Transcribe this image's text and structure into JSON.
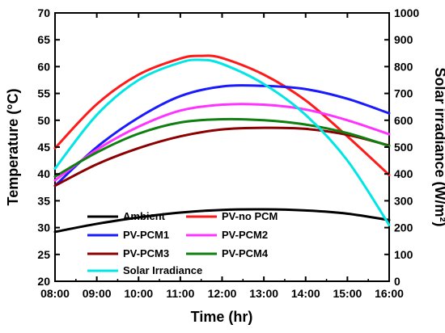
{
  "chart_data": {
    "type": "line",
    "xlabel": "Time (hr)",
    "ylabel": "Temperature (°C)",
    "y2label": "Solar irradiance (W/m²)",
    "x_ticks": [
      "08:00",
      "09:00",
      "10:00",
      "11:00",
      "12:00",
      "13:00",
      "14:00",
      "15:00",
      "16:00"
    ],
    "x_hours": [
      8,
      9,
      10,
      11,
      12,
      13,
      14,
      15,
      16
    ],
    "xlim": [
      8,
      16
    ],
    "ylim": [
      20,
      70
    ],
    "y_ticks": [
      20,
      25,
      30,
      35,
      40,
      45,
      50,
      55,
      60,
      65,
      70
    ],
    "y2lim": [
      0,
      1000
    ],
    "y2_ticks": [
      0,
      100,
      200,
      300,
      400,
      500,
      600,
      700,
      800,
      900,
      1000
    ],
    "grid": false,
    "legend_position": "lower-center",
    "series": [
      {
        "name": "Ambient",
        "axis": "left",
        "color": "#000000",
        "x": [
          8,
          9,
          10,
          11,
          12,
          13,
          14,
          15,
          16
        ],
        "y": [
          29.2,
          30.7,
          31.9,
          32.8,
          33.3,
          33.4,
          33.2,
          32.6,
          31.4
        ]
      },
      {
        "name": "PV-no PCM",
        "axis": "left",
        "color": "#ff1a1a",
        "x": [
          8,
          9,
          10,
          11,
          11.5,
          12,
          13,
          14,
          15,
          16
        ],
        "y": [
          44.8,
          53.0,
          58.5,
          61.5,
          62.0,
          61.6,
          58.5,
          53.7,
          47.0,
          39.8
        ]
      },
      {
        "name": "PV-PCM1",
        "axis": "left",
        "color": "#1a1aff",
        "x": [
          8,
          9,
          10,
          11,
          12,
          13,
          14,
          15,
          16
        ],
        "y": [
          37.8,
          45.0,
          50.5,
          54.5,
          56.3,
          56.4,
          55.8,
          54.0,
          51.3
        ]
      },
      {
        "name": "PV-PCM2",
        "axis": "left",
        "color": "#ff33ff",
        "x": [
          8,
          9,
          10,
          11,
          12,
          13,
          14,
          15,
          16
        ],
        "y": [
          38.8,
          44.5,
          48.8,
          51.8,
          52.9,
          52.9,
          52.0,
          50.0,
          47.4
        ]
      },
      {
        "name": "PV-PCM3",
        "axis": "left",
        "color": "#8b0000",
        "x": [
          8,
          9,
          10,
          11,
          12,
          13,
          14,
          15,
          16
        ],
        "y": [
          37.8,
          41.8,
          44.8,
          47.0,
          48.3,
          48.6,
          48.4,
          47.3,
          45.3
        ]
      },
      {
        "name": "PV-PCM4",
        "axis": "left",
        "color": "#0f7f0f",
        "x": [
          8,
          9,
          10,
          11,
          12,
          13,
          14,
          15,
          16
        ],
        "y": [
          39.5,
          44.0,
          47.5,
          49.6,
          50.2,
          50.0,
          49.2,
          47.6,
          45.2
        ]
      },
      {
        "name": "Solar Irradiance",
        "axis": "right",
        "color": "#00e5e5",
        "x": [
          8,
          9,
          10,
          11,
          11.5,
          12,
          13,
          14,
          15,
          16
        ],
        "y": [
          420,
          620,
          750,
          815,
          825,
          810,
          735,
          620,
          450,
          210
        ]
      }
    ]
  }
}
